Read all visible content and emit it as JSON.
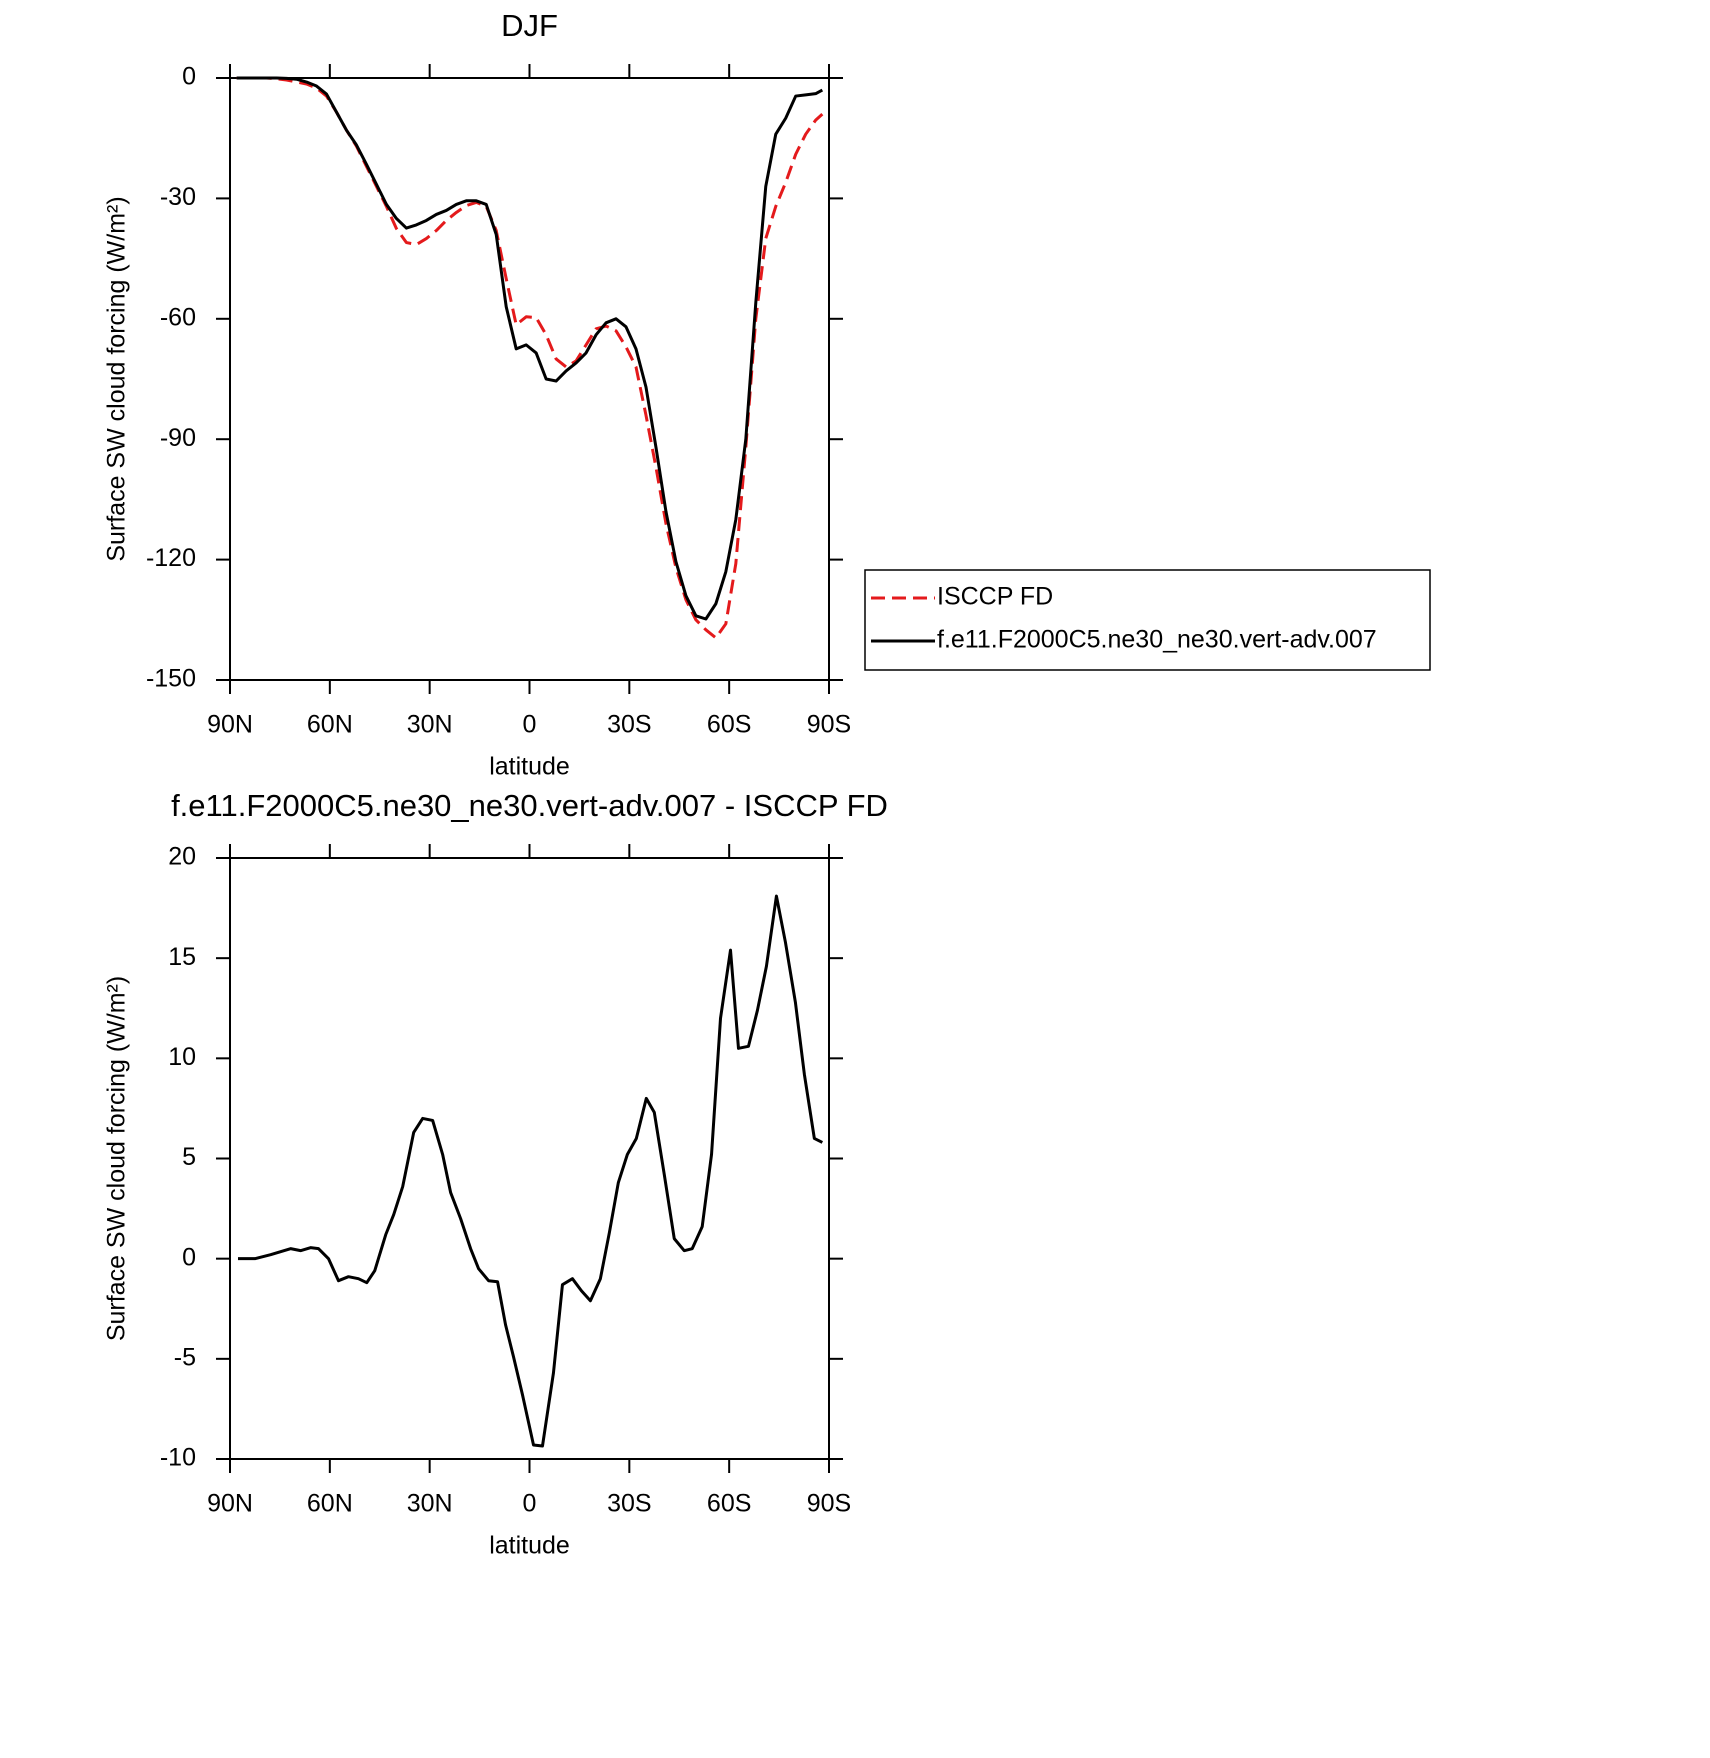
{
  "chart_data": [
    {
      "type": "line",
      "title": "DJF",
      "xlabel": "latitude",
      "ylabel": "Surface SW cloud forcing (W/m²)",
      "x": [
        88,
        85,
        82,
        79,
        76,
        73,
        70,
        67,
        64,
        61,
        58,
        55,
        52,
        49,
        46,
        43,
        40,
        37,
        34,
        31,
        28,
        25,
        22,
        19,
        16,
        13,
        10,
        7,
        4,
        1,
        -2,
        -5,
        -8,
        -11,
        -14,
        -17,
        -20,
        -23,
        -26,
        -29,
        -32,
        -35,
        -38,
        -41,
        -44,
        -47,
        -50,
        -53,
        -56,
        -59,
        -62,
        -65,
        -68,
        -71,
        -74,
        -77,
        -80,
        -83,
        -86,
        -88
      ],
      "series": [
        {
          "name": "ISCCP FD",
          "color": "#e41a1c",
          "linestyle": "dashed",
          "values": [
            0,
            0,
            0,
            0,
            -0.2,
            -0.5,
            -1,
            -1.5,
            -2.5,
            -4.5,
            -8.5,
            -13,
            -17,
            -22,
            -27,
            -32,
            -37.5,
            -41,
            -41.5,
            -40,
            -38,
            -35.5,
            -33.5,
            -31.8,
            -31,
            -32,
            -38,
            -50,
            -61.5,
            -59.5,
            -59.7,
            -64,
            -70,
            -72,
            -70.5,
            -66.5,
            -62.5,
            -61.8,
            -63,
            -67,
            -72,
            -84,
            -97,
            -111,
            -122,
            -130,
            -135,
            -137.5,
            -139.5,
            -136,
            -121,
            -92,
            -60,
            -40,
            -32,
            -26,
            -19,
            -14,
            -10.5,
            -9
          ]
        },
        {
          "name": "f.e11.F2000C5.ne30_ne30.vert-adv.007",
          "color": "#000000",
          "linestyle": "solid",
          "values": [
            0,
            0,
            0,
            0,
            0,
            -0.1,
            -0.3,
            -1,
            -2,
            -4,
            -8.5,
            -13,
            -16.7,
            -21.5,
            -26.5,
            -31.5,
            -35,
            -37.4,
            -36.6,
            -35.5,
            -34,
            -33,
            -31.5,
            -30.6,
            -30.6,
            -31.5,
            -39,
            -57,
            -67.5,
            -66.5,
            -68.5,
            -75,
            -75.5,
            -73,
            -71,
            -68.5,
            -64,
            -61,
            -60,
            -62,
            -67.5,
            -77,
            -92,
            -108,
            -120.5,
            -129,
            -134,
            -134.8,
            -131,
            -123,
            -110,
            -90,
            -56,
            -27,
            -14,
            -10,
            -4.5,
            -4.2,
            -3.9,
            -3
          ]
        }
      ],
      "xlim": [
        90,
        -90
      ],
      "xticks": [
        {
          "value": 90,
          "label": "90N"
        },
        {
          "value": 60,
          "label": "60N"
        },
        {
          "value": 30,
          "label": "30N"
        },
        0,
        {
          "value": -30,
          "label": "30S"
        },
        {
          "value": -60,
          "label": "60S"
        },
        {
          "value": -90,
          "label": "90S"
        }
      ],
      "ylim": [
        -150,
        0
      ],
      "yticks": [
        0,
        -30,
        -60,
        -90,
        -120,
        -150
      ],
      "legend": "right"
    },
    {
      "type": "line",
      "title": "f.e11.F2000C5.ne30_ne30.vert-adv.007 - ISCCP FD",
      "xlabel": "latitude",
      "ylabel": "Surface SW cloud forcing (W/m²)",
      "x": [
        87.6,
        82.5,
        77.8,
        71.8,
        68.8,
        65.8,
        63.4,
        60.4,
        57.4,
        54.4,
        51.4,
        48.9,
        46.5,
        43.2,
        40.8,
        38.1,
        34.8,
        32.1,
        29.1,
        26.1,
        23.7,
        20.7,
        17.7,
        15.3,
        12.3,
        9.6,
        7.2,
        4.8,
        2.1,
        -1.2,
        -3.9,
        -7.2,
        -9.9,
        -12.9,
        -15.6,
        -18.3,
        -21.3,
        -24,
        -26.7,
        -29.4,
        -32.1,
        -35.1,
        -37.5,
        -40.5,
        -43.5,
        -46.5,
        -48.9,
        -51.9,
        -54.7,
        -57.4,
        -60.4,
        -62.8,
        -65.8,
        -68.5,
        -71.2,
        -74.2,
        -76.9,
        -79.9,
        -82.6,
        -85.6,
        -88
      ],
      "series": [
        {
          "color": "#000000",
          "linestyle": "solid",
          "values": [
            0,
            0,
            0.2,
            0.5,
            0.4,
            0.55,
            0.5,
            0,
            -1.1,
            -0.9,
            -1,
            -1.2,
            -0.6,
            1.2,
            2.2,
            3.6,
            6.3,
            7,
            6.9,
            5.2,
            3.3,
            2,
            0.5,
            -0.5,
            -1.1,
            -1.15,
            -3.3,
            -4.9,
            -6.8,
            -9.3,
            -9.35,
            -5.7,
            -1.3,
            -1,
            -1.6,
            -2.1,
            -1,
            1.3,
            3.8,
            5.2,
            6,
            8,
            7.3,
            4.2,
            1,
            0.4,
            0.5,
            1.6,
            5.2,
            12,
            15.4,
            10.5,
            10.6,
            12.4,
            14.6,
            18.1,
            15.8,
            12.8,
            9.2,
            6,
            5.8
          ]
        }
      ],
      "xlim": [
        90,
        -90
      ],
      "xticks": [
        {
          "value": 90,
          "label": "90N"
        },
        {
          "value": 60,
          "label": "60N"
        },
        {
          "value": 30,
          "label": "30N"
        },
        0,
        {
          "value": -30,
          "label": "30S"
        },
        {
          "value": -60,
          "label": "60S"
        },
        {
          "value": -90,
          "label": "90S"
        }
      ],
      "ylim": [
        -10,
        20
      ],
      "yticks": [
        20,
        15,
        10,
        5,
        0,
        -5,
        -10
      ]
    }
  ]
}
